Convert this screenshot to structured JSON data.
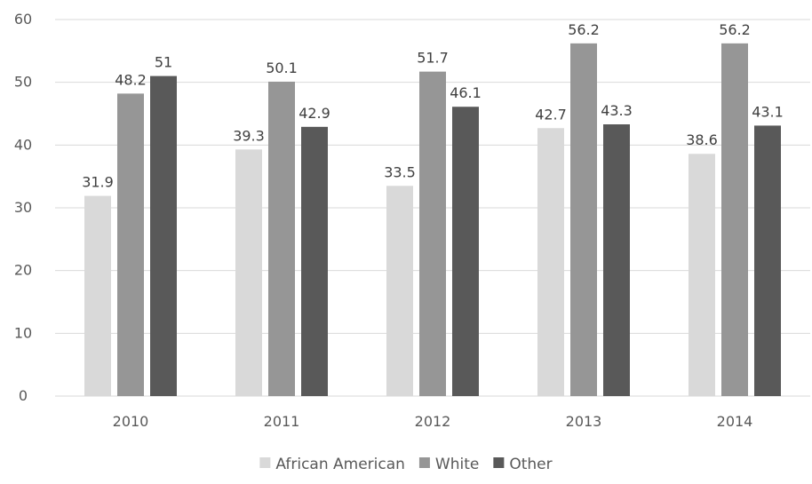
{
  "chart_data": {
    "type": "bar",
    "title": "",
    "xlabel": "",
    "ylabel": "",
    "categories": [
      "2010",
      "2011",
      "2012",
      "2013",
      "2014"
    ],
    "series": [
      {
        "name": "African American",
        "values": [
          31.9,
          39.3,
          33.5,
          42.7,
          38.6
        ],
        "color": "#d9d9d9"
      },
      {
        "name": "White",
        "values": [
          48.2,
          50.1,
          51.7,
          56.2,
          56.2
        ],
        "color": "#969696"
      },
      {
        "name": "Other",
        "values": [
          51,
          42.9,
          46.1,
          43.3,
          43.1
        ],
        "color": "#595959"
      }
    ],
    "ylim": [
      0,
      60
    ],
    "yticks": [
      "0",
      "10",
      "20",
      "30",
      "40",
      "50",
      "60"
    ],
    "data_labels": [
      [
        "31.9",
        "39.3",
        "33.5",
        "42.7",
        "38.6"
      ],
      [
        "48.2",
        "50.1",
        "51.7",
        "56.2",
        "56.2"
      ],
      [
        "51",
        "42.9",
        "46.1",
        "43.3",
        "43.1"
      ]
    ],
    "grid": true,
    "legend_position": "bottom"
  }
}
